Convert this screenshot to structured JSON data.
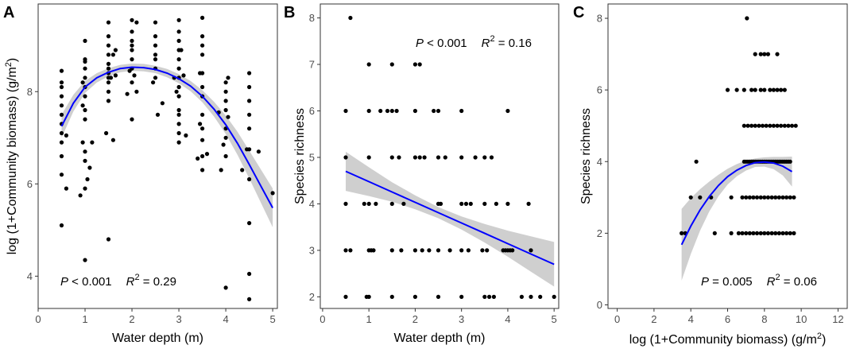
{
  "chart_data": [
    {
      "type": "scatter",
      "panel": "A",
      "xlabel": "Water depth (m)",
      "ylabel": "log (1+Community biomass)  (g/m²)",
      "xlim": [
        0,
        5.1
      ],
      "ylim": [
        3.3,
        9.9
      ],
      "xticks": [
        0,
        1,
        2,
        3,
        4,
        5
      ],
      "yticks": [
        4,
        6,
        8
      ],
      "annotation": {
        "p_label": "P",
        "p_rest": " < 0.001",
        "r_label": "R",
        "r_sup": "2",
        "r_rest": " = 0.29"
      },
      "fit": {
        "kind": "quadratic",
        "x": [
          0.5,
          0.75,
          1.0,
          1.25,
          1.5,
          1.75,
          2.0,
          2.25,
          2.5,
          2.75,
          3.0,
          3.25,
          3.5,
          3.75,
          4.0,
          4.25,
          4.5,
          4.75,
          5.0
        ],
        "y": [
          7.25,
          7.75,
          8.1,
          8.3,
          8.42,
          8.5,
          8.53,
          8.52,
          8.48,
          8.4,
          8.28,
          8.12,
          7.9,
          7.62,
          7.28,
          6.88,
          6.42,
          5.95,
          5.48
        ],
        "ci_half": [
          0.25,
          0.18,
          0.13,
          0.1,
          0.09,
          0.08,
          0.08,
          0.08,
          0.08,
          0.09,
          0.1,
          0.11,
          0.13,
          0.16,
          0.2,
          0.25,
          0.3,
          0.36,
          0.42
        ]
      },
      "points": [
        [
          0.5,
          5.1
        ],
        [
          0.5,
          6.2
        ],
        [
          0.5,
          6.6
        ],
        [
          0.5,
          6.9
        ],
        [
          0.5,
          7.1
        ],
        [
          0.5,
          7.3
        ],
        [
          0.5,
          7.5
        ],
        [
          0.5,
          7.7
        ],
        [
          0.5,
          7.9
        ],
        [
          0.5,
          8.1
        ],
        [
          0.5,
          8.2
        ],
        [
          0.5,
          8.45
        ],
        [
          0.6,
          5.9
        ],
        [
          0.6,
          7.05
        ],
        [
          0.9,
          5.75
        ],
        [
          0.95,
          6.9
        ],
        [
          0.95,
          7.7
        ],
        [
          0.95,
          8.2
        ],
        [
          1.0,
          4.35
        ],
        [
          1.0,
          5.9
        ],
        [
          1.0,
          6.5
        ],
        [
          1.0,
          6.7
        ],
        [
          1.0,
          7.4
        ],
        [
          1.0,
          7.6
        ],
        [
          1.0,
          7.9
        ],
        [
          1.0,
          8.1
        ],
        [
          1.0,
          8.3
        ],
        [
          1.0,
          8.5
        ],
        [
          1.0,
          8.65
        ],
        [
          1.0,
          8.7
        ],
        [
          1.0,
          9.1
        ],
        [
          1.05,
          6.1
        ],
        [
          1.1,
          6.35
        ],
        [
          1.15,
          6.9
        ],
        [
          1.45,
          7.1
        ],
        [
          1.5,
          4.8
        ],
        [
          1.5,
          7.8
        ],
        [
          1.5,
          8.0
        ],
        [
          1.5,
          8.2
        ],
        [
          1.5,
          8.3
        ],
        [
          1.5,
          8.4
        ],
        [
          1.5,
          8.5
        ],
        [
          1.5,
          8.6
        ],
        [
          1.5,
          8.8
        ],
        [
          1.5,
          9.0
        ],
        [
          1.5,
          9.2
        ],
        [
          1.5,
          9.5
        ],
        [
          1.55,
          8.3
        ],
        [
          1.6,
          8.8
        ],
        [
          1.6,
          6.95
        ],
        [
          1.65,
          8.35
        ],
        [
          1.65,
          8.9
        ],
        [
          1.9,
          7.95
        ],
        [
          1.95,
          8.45
        ],
        [
          2.0,
          7.4
        ],
        [
          2.0,
          8.2
        ],
        [
          2.0,
          8.5
        ],
        [
          2.0,
          8.7
        ],
        [
          2.0,
          8.9
        ],
        [
          2.0,
          9.0
        ],
        [
          2.0,
          9.1
        ],
        [
          2.0,
          9.3
        ],
        [
          2.0,
          9.55
        ],
        [
          2.05,
          8.35
        ],
        [
          2.1,
          9.5
        ],
        [
          2.1,
          8.0
        ],
        [
          2.45,
          8.2
        ],
        [
          2.5,
          8.3
        ],
        [
          2.5,
          8.5
        ],
        [
          2.5,
          8.7
        ],
        [
          2.5,
          8.8
        ],
        [
          2.5,
          9.0
        ],
        [
          2.5,
          9.2
        ],
        [
          2.5,
          9.5
        ],
        [
          2.55,
          7.5
        ],
        [
          2.65,
          7.75
        ],
        [
          2.9,
          8.3
        ],
        [
          2.95,
          8.0
        ],
        [
          3.0,
          6.9
        ],
        [
          3.0,
          7.1
        ],
        [
          3.0,
          7.3
        ],
        [
          3.0,
          7.5
        ],
        [
          3.0,
          7.6
        ],
        [
          3.0,
          7.9
        ],
        [
          3.0,
          8.1
        ],
        [
          3.0,
          8.3
        ],
        [
          3.0,
          8.5
        ],
        [
          3.0,
          8.7
        ],
        [
          3.0,
          8.9
        ],
        [
          3.0,
          9.1
        ],
        [
          3.0,
          9.3
        ],
        [
          3.0,
          9.55
        ],
        [
          3.05,
          8.9
        ],
        [
          3.1,
          8.35
        ],
        [
          3.15,
          7.05
        ],
        [
          3.4,
          6.55
        ],
        [
          3.45,
          7.3
        ],
        [
          3.45,
          8.4
        ],
        [
          3.5,
          6.3
        ],
        [
          3.5,
          6.6
        ],
        [
          3.5,
          6.95
        ],
        [
          3.5,
          7.2
        ],
        [
          3.5,
          7.5
        ],
        [
          3.5,
          7.9
        ],
        [
          3.5,
          8.1
        ],
        [
          3.5,
          8.4
        ],
        [
          3.5,
          8.8
        ],
        [
          3.5,
          9.0
        ],
        [
          3.5,
          9.2
        ],
        [
          3.5,
          9.6
        ],
        [
          3.6,
          6.65
        ],
        [
          3.85,
          7.55
        ],
        [
          3.9,
          6.3
        ],
        [
          3.95,
          6.85
        ],
        [
          4.0,
          3.75
        ],
        [
          4.0,
          6.6
        ],
        [
          4.0,
          7.0
        ],
        [
          4.0,
          7.2
        ],
        [
          4.0,
          7.6
        ],
        [
          4.0,
          7.8
        ],
        [
          4.0,
          8.0
        ],
        [
          4.0,
          8.2
        ],
        [
          4.05,
          7.45
        ],
        [
          4.05,
          8.3
        ],
        [
          4.35,
          6.3
        ],
        [
          4.45,
          6.75
        ],
        [
          4.5,
          3.5
        ],
        [
          4.5,
          4.05
        ],
        [
          4.5,
          5.15
        ],
        [
          4.5,
          6.1
        ],
        [
          4.5,
          6.75
        ],
        [
          4.5,
          7.2
        ],
        [
          4.5,
          7.5
        ],
        [
          4.5,
          7.8
        ],
        [
          4.5,
          8.1
        ],
        [
          4.5,
          8.4
        ],
        [
          4.7,
          6.7
        ],
        [
          5.0,
          5.8
        ]
      ]
    },
    {
      "type": "scatter",
      "panel": "B",
      "xlabel": "Water depth (m)",
      "ylabel": "Species richness",
      "xlim": [
        -0.05,
        5.1
      ],
      "ylim": [
        1.75,
        8.3
      ],
      "xticks": [
        0,
        1,
        2,
        3,
        4,
        5
      ],
      "yticks": [
        2,
        3,
        4,
        5,
        6,
        7,
        8
      ],
      "annotation": {
        "p_label": "P",
        "p_rest": " < 0.001",
        "r_label": "R",
        "r_sup": "2",
        "r_rest": " = 0.16"
      },
      "fit": {
        "kind": "linear",
        "x": [
          0.5,
          1.0,
          1.5,
          2.0,
          2.5,
          3.0,
          3.5,
          4.0,
          4.5,
          5.0
        ],
        "y": [
          4.7,
          4.478,
          4.256,
          4.033,
          3.811,
          3.589,
          3.367,
          3.144,
          2.922,
          2.7
        ],
        "ci_half": [
          0.42,
          0.31,
          0.21,
          0.15,
          0.12,
          0.14,
          0.2,
          0.28,
          0.38,
          0.48
        ]
      },
      "points": [
        [
          0.6,
          8
        ],
        [
          0.5,
          6
        ],
        [
          0.5,
          5
        ],
        [
          0.5,
          4
        ],
        [
          0.5,
          3
        ],
        [
          0.5,
          2
        ],
        [
          0.6,
          3
        ],
        [
          0.9,
          4
        ],
        [
          0.95,
          2
        ],
        [
          1.0,
          2
        ],
        [
          1.0,
          3
        ],
        [
          1.0,
          4
        ],
        [
          1.0,
          5
        ],
        [
          1.0,
          6
        ],
        [
          1.0,
          7
        ],
        [
          1.05,
          3
        ],
        [
          1.1,
          3
        ],
        [
          1.15,
          4
        ],
        [
          1.25,
          6
        ],
        [
          1.5,
          2
        ],
        [
          1.5,
          3
        ],
        [
          1.5,
          4
        ],
        [
          1.5,
          5
        ],
        [
          1.5,
          6
        ],
        [
          1.5,
          7
        ],
        [
          1.4,
          6
        ],
        [
          1.6,
          6
        ],
        [
          1.65,
          5
        ],
        [
          1.7,
          3
        ],
        [
          1.75,
          4
        ],
        [
          2.0,
          2
        ],
        [
          2.0,
          3
        ],
        [
          2.0,
          5
        ],
        [
          2.0,
          6
        ],
        [
          2.0,
          7
        ],
        [
          2.1,
          7
        ],
        [
          2.1,
          5
        ],
        [
          2.15,
          3
        ],
        [
          2.2,
          5
        ],
        [
          2.3,
          3
        ],
        [
          2.4,
          6
        ],
        [
          2.5,
          2
        ],
        [
          2.5,
          3
        ],
        [
          2.5,
          4
        ],
        [
          2.5,
          5
        ],
        [
          2.5,
          6
        ],
        [
          2.55,
          4
        ],
        [
          2.65,
          5
        ],
        [
          2.75,
          3
        ],
        [
          3.0,
          2
        ],
        [
          3.0,
          3
        ],
        [
          3.0,
          4
        ],
        [
          3.0,
          5
        ],
        [
          3.0,
          6
        ],
        [
          3.1,
          4
        ],
        [
          3.15,
          3
        ],
        [
          3.2,
          4
        ],
        [
          3.3,
          5
        ],
        [
          3.45,
          3
        ],
        [
          3.5,
          2
        ],
        [
          3.5,
          4
        ],
        [
          3.5,
          5
        ],
        [
          3.55,
          3
        ],
        [
          3.6,
          2
        ],
        [
          3.65,
          5
        ],
        [
          3.7,
          2
        ],
        [
          3.75,
          4
        ],
        [
          3.9,
          3
        ],
        [
          3.95,
          3
        ],
        [
          4.0,
          3
        ],
        [
          4.0,
          4
        ],
        [
          4.0,
          6
        ],
        [
          4.05,
          3
        ],
        [
          4.1,
          3
        ],
        [
          4.3,
          2
        ],
        [
          4.45,
          4
        ],
        [
          4.5,
          2
        ],
        [
          4.5,
          3
        ],
        [
          4.7,
          2
        ],
        [
          5.0,
          2
        ]
      ]
    },
    {
      "type": "scatter",
      "panel": "C",
      "xlabel": "log (1+Community biomass) (g/m²)",
      "ylabel": "Species richness",
      "xlim": [
        -0.5,
        12.5
      ],
      "ylim": [
        -0.1,
        8.4
      ],
      "xticks": [
        0,
        2,
        4,
        6,
        8,
        10,
        12
      ],
      "yticks": [
        0,
        2,
        4,
        6,
        8
      ],
      "annotation": {
        "p_label": "P",
        "p_rest": " = 0.005",
        "r_label": "R",
        "r_sup": "2",
        "r_rest": " = 0.06"
      },
      "fit": {
        "kind": "quadratic",
        "x": [
          3.5,
          4.0,
          4.5,
          5.0,
          5.5,
          6.0,
          6.5,
          7.0,
          7.5,
          8.0,
          8.5,
          9.0,
          9.5
        ],
        "y": [
          1.68,
          2.2,
          2.65,
          3.02,
          3.33,
          3.58,
          3.76,
          3.89,
          3.97,
          3.99,
          3.96,
          3.87,
          3.72
        ],
        "ci_half": [
          1.0,
          0.78,
          0.58,
          0.42,
          0.3,
          0.22,
          0.17,
          0.14,
          0.12,
          0.13,
          0.17,
          0.26,
          0.42
        ]
      },
      "points": [
        [
          7.05,
          8
        ],
        [
          7.5,
          7
        ],
        [
          7.8,
          7
        ],
        [
          8.0,
          7
        ],
        [
          8.2,
          7
        ],
        [
          8.7,
          7
        ],
        [
          6.0,
          6
        ],
        [
          6.5,
          6
        ],
        [
          6.9,
          6
        ],
        [
          7.3,
          6
        ],
        [
          7.5,
          6
        ],
        [
          7.8,
          6
        ],
        [
          8.0,
          6
        ],
        [
          8.3,
          6
        ],
        [
          8.5,
          6
        ],
        [
          8.7,
          6
        ],
        [
          8.9,
          6
        ],
        [
          9.1,
          6
        ],
        [
          6.9,
          5
        ],
        [
          7.1,
          5
        ],
        [
          7.3,
          5
        ],
        [
          7.5,
          5
        ],
        [
          7.7,
          5
        ],
        [
          7.9,
          5
        ],
        [
          8.1,
          5
        ],
        [
          8.3,
          5
        ],
        [
          8.5,
          5
        ],
        [
          8.7,
          5
        ],
        [
          8.9,
          5
        ],
        [
          9.1,
          5
        ],
        [
          9.3,
          5
        ],
        [
          9.5,
          5
        ],
        [
          9.7,
          5
        ],
        [
          4.3,
          4
        ],
        [
          6.9,
          4
        ],
        [
          7.0,
          4
        ],
        [
          7.1,
          4
        ],
        [
          7.2,
          4
        ],
        [
          7.3,
          4
        ],
        [
          7.4,
          4
        ],
        [
          7.5,
          4
        ],
        [
          7.6,
          4
        ],
        [
          7.7,
          4
        ],
        [
          7.8,
          4
        ],
        [
          7.9,
          4
        ],
        [
          8.0,
          4
        ],
        [
          8.1,
          4
        ],
        [
          8.2,
          4
        ],
        [
          8.3,
          4
        ],
        [
          8.4,
          4
        ],
        [
          8.5,
          4
        ],
        [
          8.6,
          4
        ],
        [
          8.7,
          4
        ],
        [
          8.8,
          4
        ],
        [
          8.9,
          4
        ],
        [
          9.0,
          4
        ],
        [
          9.1,
          4
        ],
        [
          9.2,
          4
        ],
        [
          9.3,
          4
        ],
        [
          9.4,
          4
        ],
        [
          4.0,
          3
        ],
        [
          4.5,
          3
        ],
        [
          5.1,
          3
        ],
        [
          6.2,
          3
        ],
        [
          6.8,
          3
        ],
        [
          7.0,
          3
        ],
        [
          7.2,
          3
        ],
        [
          7.4,
          3
        ],
        [
          7.6,
          3
        ],
        [
          7.8,
          3
        ],
        [
          8.0,
          3
        ],
        [
          8.2,
          3
        ],
        [
          8.4,
          3
        ],
        [
          8.6,
          3
        ],
        [
          8.8,
          3
        ],
        [
          9.0,
          3
        ],
        [
          9.2,
          3
        ],
        [
          9.4,
          3
        ],
        [
          9.6,
          3
        ],
        [
          3.5,
          2
        ],
        [
          3.7,
          2
        ],
        [
          5.3,
          2
        ],
        [
          6.2,
          2
        ],
        [
          6.6,
          2
        ],
        [
          6.8,
          2
        ],
        [
          7.0,
          2
        ],
        [
          7.2,
          2
        ],
        [
          7.4,
          2
        ],
        [
          7.6,
          2
        ],
        [
          7.8,
          2
        ],
        [
          8.0,
          2
        ],
        [
          8.2,
          2
        ],
        [
          8.4,
          2
        ],
        [
          8.6,
          2
        ],
        [
          8.8,
          2
        ],
        [
          9.0,
          2
        ],
        [
          9.2,
          2
        ],
        [
          9.4,
          2
        ],
        [
          9.6,
          2
        ]
      ]
    }
  ],
  "colors": {
    "points": "#000000",
    "fit_line": "#0000ff",
    "ci_band": "#bfbfbf",
    "axis": "#333333",
    "tick_text": "#4d4d4d"
  }
}
